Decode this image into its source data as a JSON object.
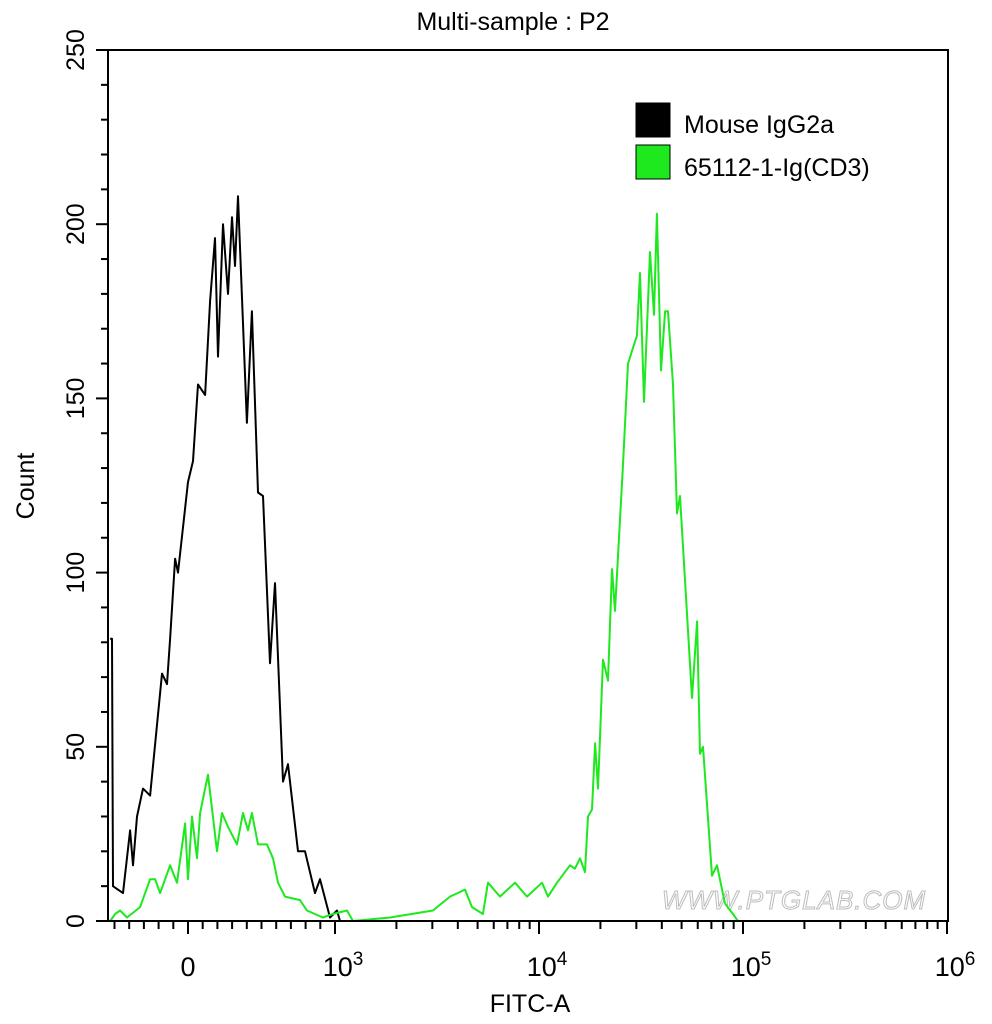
{
  "chart_data": {
    "type": "line",
    "title": "Multi-sample : P2",
    "xlabel": "FITC-A",
    "ylabel": "Count",
    "x_scale": "biexponential",
    "xlim": [
      -530,
      1000000
    ],
    "ylim": [
      0,
      250
    ],
    "x_ticks": [
      {
        "value": 0,
        "label": "0",
        "sup": ""
      },
      {
        "value": 1000,
        "label": "10",
        "sup": "3"
      },
      {
        "value": 10000,
        "label": "10",
        "sup": "4"
      },
      {
        "value": 100000,
        "label": "10",
        "sup": "5"
      },
      {
        "value": 1000000,
        "label": "10",
        "sup": "6"
      }
    ],
    "y_ticks": [
      "0",
      "50",
      "100",
      "150",
      "200",
      "250"
    ],
    "grid": false,
    "legend_position": "top-right",
    "watermark": "WWW.PTGLAB.COM",
    "series": [
      {
        "name": "Mouse IgG2a",
        "color": "#000000",
        "points": [
          [
            -530,
            81
          ],
          [
            -517,
            81
          ],
          [
            -510,
            10
          ],
          [
            -442,
            8
          ],
          [
            -394,
            26
          ],
          [
            -374,
            16
          ],
          [
            -347,
            30
          ],
          [
            -306,
            38
          ],
          [
            -258,
            36
          ],
          [
            -177,
            71
          ],
          [
            -143,
            68
          ],
          [
            -122,
            81
          ],
          [
            -88,
            104
          ],
          [
            -68,
            100
          ],
          [
            0,
            126
          ],
          [
            34,
            132
          ],
          [
            68,
            154
          ],
          [
            116,
            151
          ],
          [
            150,
            178
          ],
          [
            184,
            196
          ],
          [
            204,
            162
          ],
          [
            238,
            200
          ],
          [
            272,
            180
          ],
          [
            299,
            202
          ],
          [
            320,
            188
          ],
          [
            340,
            208
          ],
          [
            401,
            143
          ],
          [
            435,
            175
          ],
          [
            476,
            123
          ],
          [
            510,
            122
          ],
          [
            558,
            74
          ],
          [
            592,
            97
          ],
          [
            646,
            40
          ],
          [
            680,
            45
          ],
          [
            748,
            20
          ],
          [
            796,
            20
          ],
          [
            864,
            8
          ],
          [
            898,
            12
          ],
          [
            966,
            1
          ],
          [
            1023,
            3
          ],
          [
            1058,
            0
          ],
          [
            1000000,
            0
          ]
        ]
      },
      {
        "name": "65112-1-Ig(CD3)",
        "color": "#1ee81e",
        "points": [
          [
            -530,
            0
          ],
          [
            -496,
            2
          ],
          [
            -462,
            3
          ],
          [
            -415,
            1
          ],
          [
            -326,
            4
          ],
          [
            -258,
            12
          ],
          [
            -224,
            12
          ],
          [
            -190,
            8
          ],
          [
            -122,
            16
          ],
          [
            -75,
            11
          ],
          [
            -20,
            28
          ],
          [
            0,
            12
          ],
          [
            27,
            30
          ],
          [
            61,
            18
          ],
          [
            82,
            31
          ],
          [
            136,
            42
          ],
          [
            197,
            20
          ],
          [
            231,
            31
          ],
          [
            272,
            27
          ],
          [
            333,
            22
          ],
          [
            374,
            31
          ],
          [
            408,
            26
          ],
          [
            435,
            31
          ],
          [
            476,
            22
          ],
          [
            537,
            22
          ],
          [
            578,
            18
          ],
          [
            612,
            11
          ],
          [
            660,
            7
          ],
          [
            762,
            6
          ],
          [
            809,
            3
          ],
          [
            918,
            1
          ],
          [
            986,
            2
          ],
          [
            1145,
            3
          ],
          [
            1225,
            0
          ],
          [
            1862,
            1
          ],
          [
            3020,
            3
          ],
          [
            3664,
            7
          ],
          [
            4339,
            9
          ],
          [
            4694,
            4
          ],
          [
            5309,
            2
          ],
          [
            5623,
            11
          ],
          [
            6442,
            7
          ],
          [
            7623,
            11
          ],
          [
            8730,
            7
          ],
          [
            10340,
            11
          ],
          [
            11070,
            7
          ],
          [
            12250,
            11
          ],
          [
            14190,
            16
          ],
          [
            15000,
            15
          ],
          [
            15880,
            18
          ],
          [
            16800,
            14
          ],
          [
            17380,
            30
          ],
          [
            18190,
            32
          ],
          [
            18830,
            51
          ],
          [
            19460,
            38
          ],
          [
            20590,
            75
          ],
          [
            21790,
            69
          ],
          [
            22800,
            101
          ],
          [
            23590,
            89
          ],
          [
            25820,
            131
          ],
          [
            27310,
            160
          ],
          [
            30200,
            168
          ],
          [
            31260,
            186
          ],
          [
            32720,
            149
          ],
          [
            35000,
            192
          ],
          [
            36640,
            174
          ],
          [
            37860,
            203
          ],
          [
            39630,
            158
          ],
          [
            41490,
            175
          ],
          [
            42890,
            175
          ],
          [
            45380,
            154
          ],
          [
            47450,
            117
          ],
          [
            49090,
            122
          ],
          [
            56230,
            64
          ],
          [
            59560,
            86
          ],
          [
            61520,
            48
          ],
          [
            63680,
            50
          ],
          [
            70470,
            13
          ],
          [
            74600,
            16
          ],
          [
            81660,
            5
          ],
          [
            89330,
            2
          ],
          [
            94420,
            0
          ],
          [
            1000000,
            0
          ]
        ]
      }
    ]
  }
}
